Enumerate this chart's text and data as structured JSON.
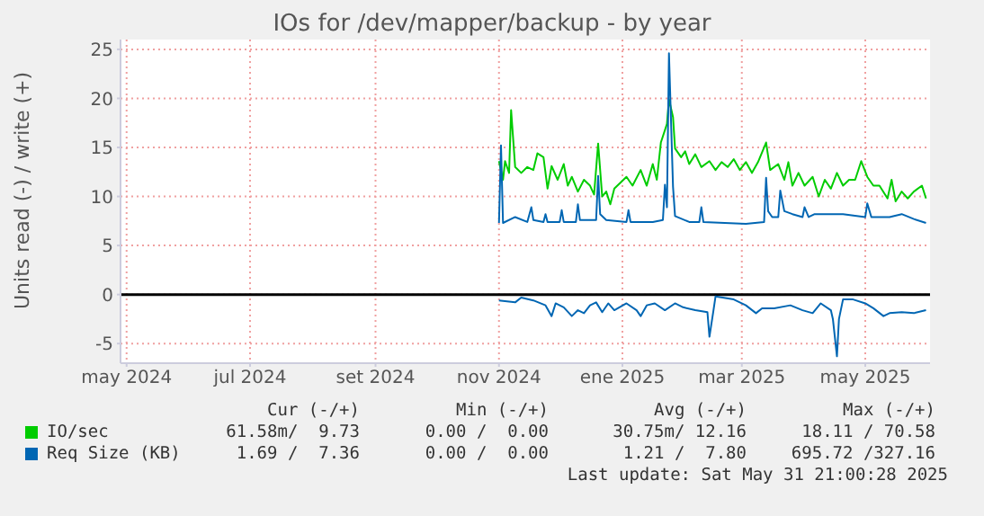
{
  "chart_data": {
    "type": "line",
    "title": "IOs for /dev/mapper/backup - by year",
    "ylabel": "Units read (-) / write (+)",
    "xlim": [
      "2024-04-28",
      "2025-06-02"
    ],
    "xticks": [
      {
        "value": "2024-05-01",
        "label": "may 2024"
      },
      {
        "value": "2024-07-01",
        "label": "jul 2024"
      },
      {
        "value": "2024-09-01",
        "label": "set 2024"
      },
      {
        "value": "2024-11-01",
        "label": "nov 2024"
      },
      {
        "value": "2025-01-01",
        "label": "ene 2025"
      },
      {
        "value": "2025-03-01",
        "label": "mar 2025"
      },
      {
        "value": "2025-05-01",
        "label": "may 2025"
      }
    ],
    "ylim": [
      -7,
      26
    ],
    "yticks": [
      -5,
      0,
      5,
      10,
      15,
      20,
      25
    ],
    "grid": true,
    "legend": "bottom",
    "marker": "none",
    "line_style": "solid",
    "ref_lines": [
      {
        "axis": "y",
        "value": 0,
        "color": "#000000"
      }
    ],
    "series": [
      {
        "name": "IO/sec",
        "color": "#00cc00",
        "x": [
          "2024-11-01",
          "2024-11-03",
          "2024-11-04",
          "2024-11-06",
          "2024-11-07",
          "2024-11-09",
          "2024-11-12",
          "2024-11-15",
          "2024-11-18",
          "2024-11-20",
          "2024-11-23",
          "2024-11-25",
          "2024-11-27",
          "2024-11-30",
          "2024-12-03",
          "2024-12-05",
          "2024-12-07",
          "2024-12-10",
          "2024-12-13",
          "2024-12-16",
          "2024-12-18",
          "2024-12-20",
          "2024-12-22",
          "2024-12-24",
          "2024-12-26",
          "2024-12-28",
          "2024-12-31",
          "2025-01-03",
          "2025-01-06",
          "2025-01-10",
          "2025-01-13",
          "2025-01-16",
          "2025-01-18",
          "2025-01-20",
          "2025-01-23",
          "2025-01-24",
          "2025-01-26",
          "2025-01-27",
          "2025-01-30",
          "2025-02-01",
          "2025-02-03",
          "2025-02-06",
          "2025-02-09",
          "2025-02-13",
          "2025-02-16",
          "2025-02-19",
          "2025-02-22",
          "2025-02-25",
          "2025-02-28",
          "2025-03-03",
          "2025-03-06",
          "2025-03-09",
          "2025-03-13",
          "2025-03-15",
          "2025-03-19",
          "2025-03-22",
          "2025-03-24",
          "2025-03-26",
          "2025-03-29",
          "2025-04-01",
          "2025-04-05",
          "2025-04-08",
          "2025-04-11",
          "2025-04-14",
          "2025-04-17",
          "2025-04-20",
          "2025-04-23",
          "2025-04-26",
          "2025-04-29",
          "2025-05-02",
          "2025-05-05",
          "2025-05-08",
          "2025-05-12",
          "2025-05-14",
          "2025-05-16",
          "2025-05-19",
          "2025-05-22",
          "2025-05-25",
          "2025-05-29",
          "2025-05-31"
        ],
        "values": [
          13.6,
          11.7,
          13.6,
          12.4,
          18.8,
          13.0,
          12.4,
          13.0,
          12.7,
          14.4,
          14.0,
          10.8,
          13.1,
          11.7,
          13.3,
          11.1,
          12.0,
          10.5,
          11.7,
          11.1,
          10.2,
          15.4,
          10.0,
          10.5,
          9.2,
          10.8,
          11.4,
          12.0,
          11.1,
          12.7,
          11.1,
          13.3,
          11.7,
          15.5,
          17.4,
          19.9,
          18.1,
          14.9,
          14.0,
          14.6,
          13.3,
          14.3,
          13.0,
          13.6,
          12.7,
          13.5,
          13.0,
          13.8,
          12.7,
          13.5,
          12.4,
          13.5,
          15.5,
          12.7,
          13.3,
          11.7,
          13.5,
          11.1,
          12.4,
          11.1,
          12.0,
          10.0,
          11.7,
          10.8,
          12.4,
          11.1,
          11.7,
          11.7,
          13.6,
          12.0,
          11.1,
          11.1,
          9.8,
          11.7,
          9.5,
          10.5,
          9.8,
          10.5,
          11.1,
          9.8
        ]
      },
      {
        "name": "Req Size (KB)",
        "color": "#0066b3",
        "x": [
          "2024-11-01",
          "2024-11-02",
          "2024-11-03",
          "2024-11-09",
          "2024-11-15",
          "2024-11-17",
          "2024-11-18",
          "2024-11-23",
          "2024-11-24",
          "2024-11-25",
          "2024-12-01",
          "2024-12-02",
          "2024-12-03",
          "2024-12-09",
          "2024-12-10",
          "2024-12-11",
          "2024-12-19",
          "2024-12-20",
          "2024-12-21",
          "2024-12-24",
          "2025-01-03",
          "2025-01-04",
          "2025-01-05",
          "2025-01-16",
          "2025-01-21",
          "2025-01-22",
          "2025-01-23",
          "2025-01-24",
          "2025-01-26",
          "2025-01-27",
          "2025-02-03",
          "2025-02-08",
          "2025-02-09",
          "2025-02-10",
          "2025-03-03",
          "2025-03-12",
          "2025-03-13",
          "2025-03-14",
          "2025-03-16",
          "2025-03-19",
          "2025-03-20",
          "2025-03-22",
          "2025-03-26",
          "2025-03-31",
          "2025-04-01",
          "2025-04-03",
          "2025-04-06",
          "2025-04-12",
          "2025-04-20",
          "2025-05-01",
          "2025-05-02",
          "2025-05-04",
          "2025-05-13",
          "2025-05-19",
          "2025-05-25",
          "2025-05-31"
        ],
        "values": [
          7.3,
          15.2,
          7.3,
          7.9,
          7.4,
          8.9,
          7.6,
          7.4,
          8.2,
          7.4,
          7.4,
          8.6,
          7.4,
          7.4,
          9.2,
          7.6,
          7.6,
          12.1,
          8.2,
          7.6,
          7.4,
          8.6,
          7.4,
          7.4,
          7.6,
          11.2,
          8.9,
          24.6,
          11.0,
          8.0,
          7.4,
          7.4,
          8.9,
          7.4,
          7.2,
          7.4,
          11.9,
          8.5,
          7.9,
          7.9,
          10.6,
          8.5,
          8.2,
          7.9,
          8.9,
          7.9,
          8.2,
          8.2,
          8.2,
          7.9,
          9.3,
          7.9,
          7.9,
          8.2,
          7.7,
          7.3
        ]
      },
      {
        "color": "#0066b3",
        "x": [
          "2024-11-01",
          "2024-11-09",
          "2024-11-12",
          "2024-11-18",
          "2024-11-24",
          "2024-11-27",
          "2024-11-29",
          "2024-12-03",
          "2024-12-07",
          "2024-12-10",
          "2024-12-13",
          "2024-12-16",
          "2024-12-19",
          "2024-12-22",
          "2024-12-25",
          "2024-12-28",
          "2025-01-03",
          "2025-01-08",
          "2025-01-10",
          "2025-01-13",
          "2025-01-17",
          "2025-01-22",
          "2025-01-27",
          "2025-01-31",
          "2025-02-06",
          "2025-02-12",
          "2025-02-13",
          "2025-02-15",
          "2025-02-16",
          "2025-02-25",
          "2025-03-03",
          "2025-03-08",
          "2025-03-11",
          "2025-03-17",
          "2025-03-25",
          "2025-03-31",
          "2025-04-05",
          "2025-04-09",
          "2025-04-14",
          "2025-04-15",
          "2025-04-17",
          "2025-04-18",
          "2025-04-20",
          "2025-04-25",
          "2025-05-01",
          "2025-05-05",
          "2025-05-10",
          "2025-05-13",
          "2025-05-19",
          "2025-05-25",
          "2025-05-31"
        ],
        "values": [
          -0.6,
          -0.8,
          -0.3,
          -0.6,
          -1.1,
          -2.2,
          -0.9,
          -1.3,
          -2.2,
          -1.6,
          -1.9,
          -1.1,
          -0.8,
          -1.8,
          -0.9,
          -1.6,
          -0.9,
          -1.6,
          -2.2,
          -1.1,
          -0.9,
          -1.6,
          -0.9,
          -1.3,
          -1.6,
          -1.8,
          -4.3,
          -1.6,
          -0.2,
          -0.5,
          -1.1,
          -1.9,
          -1.4,
          -1.4,
          -1.1,
          -1.6,
          -1.9,
          -0.9,
          -1.6,
          -2.5,
          -6.3,
          -2.5,
          -0.5,
          -0.5,
          -0.9,
          -1.4,
          -2.2,
          -1.9,
          -1.8,
          -1.9,
          -1.6
        ]
      }
    ],
    "annotations": [
      "Cur (-/+)",
      "Min (-/+)",
      "Avg (-/+)",
      "Max (-/+)",
      "61.58m/  9.73",
      "0.00 /  0.00",
      "30.75m/ 12.16",
      "18.11 / 70.58",
      "1.69 /  7.36",
      "0.00 /  0.00",
      "1.21 /  7.80",
      "695.72 /327.16",
      "Last update: Sat May 31 21:00:28 2025"
    ]
  }
}
